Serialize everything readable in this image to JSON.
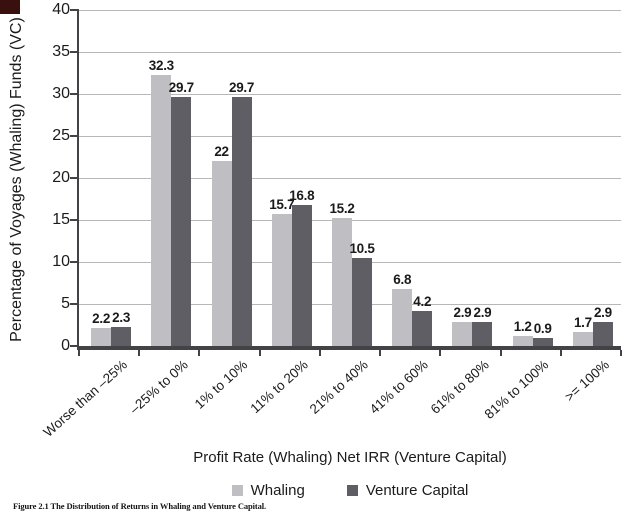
{
  "figure": {
    "caption": "Figure 2.1 The Distribution of Returns in Whaling and Venture Capital."
  },
  "chart_data": {
    "type": "bar",
    "title": "",
    "categories": [
      "Worse than –25%",
      "–25% to 0%",
      "1% to 10%",
      "11% to 20%",
      "21% to 40%",
      "41% to 60%",
      "61% to 80%",
      "81% to 100%",
      ">= 100%"
    ],
    "series": [
      {
        "name": "Whaling",
        "color": "#bfbfc3",
        "values": [
          2.2,
          32.3,
          22,
          15.7,
          15.2,
          6.8,
          2.9,
          1.2,
          1.7
        ],
        "labels": [
          "2.2",
          "32.3",
          "22",
          "15.7",
          "15.2",
          "6.8",
          "2.9",
          "1.2",
          "1.7"
        ]
      },
      {
        "name": "Venture Capital",
        "color": "#5e5e64",
        "values": [
          2.3,
          29.7,
          29.7,
          16.8,
          10.5,
          4.2,
          2.9,
          0.9,
          2.9
        ],
        "labels": [
          "2.3",
          "29.7",
          "29.7",
          "16.8",
          "10.5",
          "4.2",
          "2.9",
          "0.9",
          "2.9"
        ]
      }
    ],
    "xlabel": "Profit Rate (Whaling) Net IRR (Venture Capital)",
    "ylabel": "Percentage of Voyages (Whaling) Funds (VC)",
    "ylim": [
      0,
      40
    ],
    "ytick_step": 5,
    "grid": true,
    "legend_position": "bottom",
    "value_labels_shown": true
  },
  "colors": {
    "background": "#ffffff",
    "grid": "#b7b7b7",
    "axis": "#424247",
    "text": "#1b1b1b",
    "corner_mark": "#3a100e"
  }
}
